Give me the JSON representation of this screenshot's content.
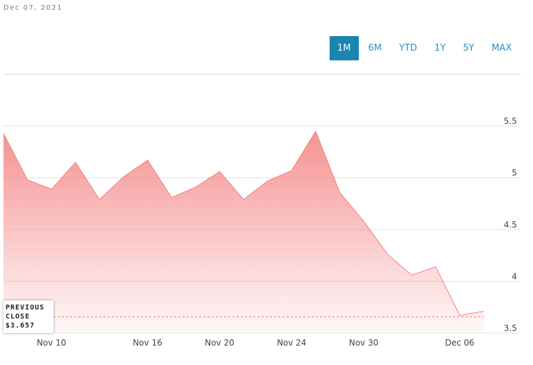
{
  "date": "Dec 07, 2021",
  "ranges": [
    "1M",
    "6M",
    "YTD",
    "1Y",
    "5Y",
    "MAX"
  ],
  "active_range": "1M",
  "chart_data": {
    "type": "area",
    "categories": [
      null,
      null,
      "Nov 10",
      null,
      null,
      null,
      "Nov 16",
      null,
      null,
      "Nov 20",
      null,
      null,
      "Nov 24",
      null,
      null,
      "Nov 30",
      null,
      null,
      null,
      "Dec 06",
      null
    ],
    "values": [
      5.43,
      4.98,
      4.89,
      5.15,
      4.79,
      5.01,
      5.17,
      4.81,
      4.91,
      5.06,
      4.79,
      4.97,
      5.07,
      5.45,
      4.86,
      4.58,
      4.26,
      4.06,
      4.14,
      3.67,
      3.71
    ],
    "color": "#f47f7f",
    "ylim": [
      3.5,
      6
    ],
    "yticks": [
      3.5,
      4,
      4.5,
      5,
      5.5
    ],
    "grid": true,
    "previous_close": {
      "label": "PREVIOUS CLOSE",
      "value": 3.657,
      "value_label": "$3.657"
    }
  }
}
